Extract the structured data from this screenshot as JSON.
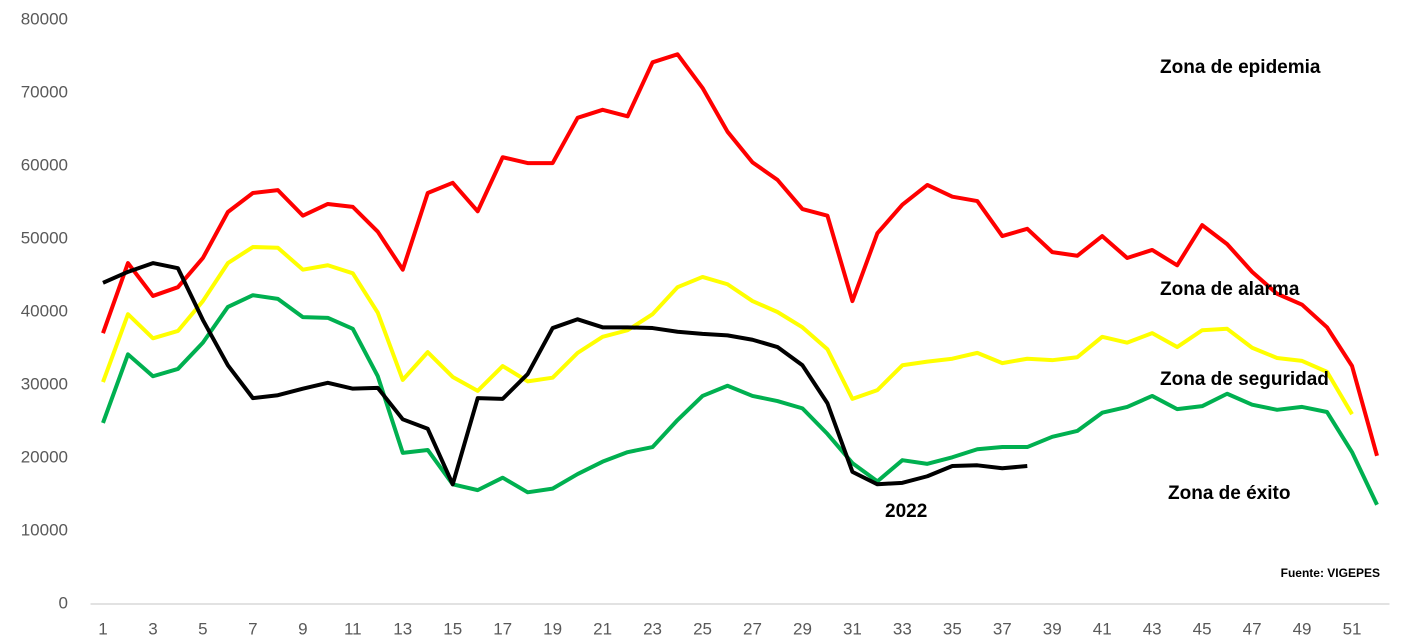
{
  "chart_data": {
    "type": "line",
    "x": [
      1,
      2,
      3,
      4,
      5,
      6,
      7,
      8,
      9,
      10,
      11,
      12,
      13,
      14,
      15,
      16,
      17,
      18,
      19,
      20,
      21,
      22,
      23,
      24,
      25,
      26,
      27,
      28,
      29,
      30,
      31,
      32,
      33,
      34,
      35,
      36,
      37,
      38,
      39,
      40,
      41,
      42,
      43,
      44,
      45,
      46,
      47,
      48,
      49,
      50,
      51,
      52
    ],
    "xlim": [
      0.5,
      52.5
    ],
    "xticks": [
      1,
      3,
      5,
      7,
      9,
      11,
      13,
      15,
      17,
      19,
      21,
      23,
      25,
      27,
      29,
      31,
      33,
      35,
      37,
      39,
      41,
      43,
      45,
      47,
      49,
      51
    ],
    "ylim": [
      0,
      80000
    ],
    "yticks": [
      0,
      10000,
      20000,
      30000,
      40000,
      50000,
      60000,
      70000,
      80000
    ],
    "grid": false,
    "source": "Fuente: VIGEPES",
    "series": [
      {
        "name": "Zona de epidemia",
        "color": "#ff0000",
        "values": [
          37100,
          46700,
          42200,
          43400,
          47400,
          53700,
          56300,
          56700,
          53200,
          54800,
          54400,
          51000,
          45800,
          56300,
          57700,
          53800,
          61200,
          60400,
          60400,
          66600,
          67700,
          66800,
          74200,
          75300,
          70700,
          64700,
          60500,
          58100,
          54100,
          53200,
          41500,
          50800,
          54700,
          57400,
          55800,
          55200,
          50400,
          51400,
          48200,
          47700,
          50400,
          47400,
          48500,
          46400,
          51900,
          49300,
          45500,
          42500,
          41000,
          37900,
          32600,
          20300
        ]
      },
      {
        "name": "Zona de alarma",
        "color": "#ffff00",
        "values": [
          30400,
          39700,
          36400,
          37400,
          41500,
          46700,
          48900,
          48800,
          45800,
          46400,
          45300,
          39900,
          30700,
          34500,
          31100,
          29200,
          32600,
          30500,
          31000,
          34400,
          36600,
          37500,
          39700,
          43400,
          44800,
          43800,
          41500,
          40000,
          37900,
          34900,
          28100,
          29300,
          32700,
          33200,
          33600,
          34400,
          33000,
          33600,
          33400,
          33800,
          36600,
          35800,
          37100,
          35200,
          37500,
          37700,
          35100,
          33700,
          33300,
          31800,
          26000,
          null
        ]
      },
      {
        "name": "Zona de seguridad",
        "color": "#00b050",
        "values": [
          24800,
          34200,
          31200,
          32200,
          35800,
          40700,
          42300,
          41800,
          39300,
          39200,
          37700,
          31200,
          20700,
          21100,
          16400,
          15600,
          17300,
          15300,
          15800,
          17800,
          19500,
          20800,
          21500,
          25200,
          28500,
          29900,
          28500,
          27800,
          26800,
          23300,
          19300,
          16800,
          19700,
          19200,
          20100,
          21200,
          21500,
          21500,
          22900,
          23700,
          26200,
          27000,
          28500,
          26700,
          27100,
          28800,
          27300,
          26600,
          27000,
          26300,
          20800,
          13600
        ]
      },
      {
        "name": "2022",
        "color": "#000000",
        "values": [
          44000,
          45500,
          46700,
          46000,
          38900,
          32700,
          28200,
          28600,
          29500,
          30300,
          29500,
          29600,
          25300,
          24000,
          16400,
          28200,
          28100,
          31500,
          37800,
          39000,
          37900,
          37900,
          37800,
          37300,
          37000,
          36800,
          36200,
          35200,
          32700,
          27500,
          18100,
          16400,
          16600,
          17500,
          18900,
          19000,
          18600,
          18900,
          null,
          null,
          null,
          null,
          null,
          null,
          null,
          null,
          null,
          null,
          null,
          null,
          null,
          null
        ]
      }
    ],
    "annotations": [
      "Zona de éxito"
    ]
  }
}
